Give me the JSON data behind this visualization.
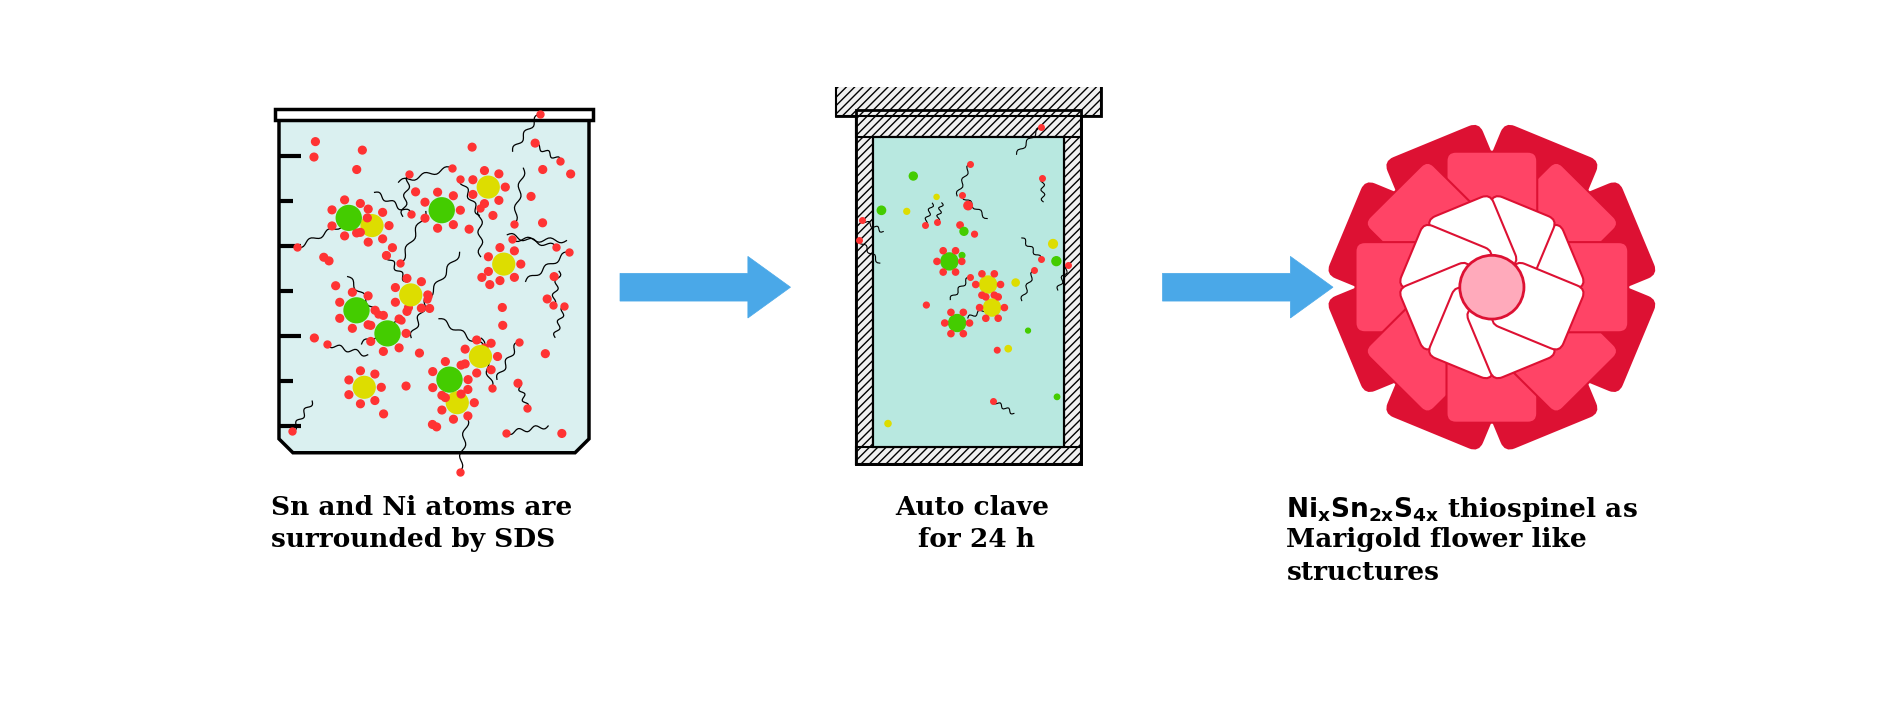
{
  "bg_color": "#ffffff",
  "text1_line1": "Sn and Ni atoms are",
  "text1_line2": "surrounded by SDS",
  "text2_line1": "Auto clave",
  "text2_line2": "for 24 h",
  "text3_line1": "$\\mathbf{Ni_xSn_{2x}S_{4x}}$ thiospinel as",
  "text3_line2": "Marigold flower like",
  "text3_line3": "structures",
  "text_fontsize": 19,
  "beaker_bg": "#daf0f0",
  "autoclave_inner_bg": "#b8e8e0",
  "arrow_color": "#4aa8e8",
  "ni_color": "#44cc00",
  "sn_color": "#dddd00",
  "s_color": "#ff3333",
  "flower_red": "#dd1133",
  "flower_pink": "#ff4466",
  "flower_light": "#ffaabb",
  "hatch_color": "#888888"
}
